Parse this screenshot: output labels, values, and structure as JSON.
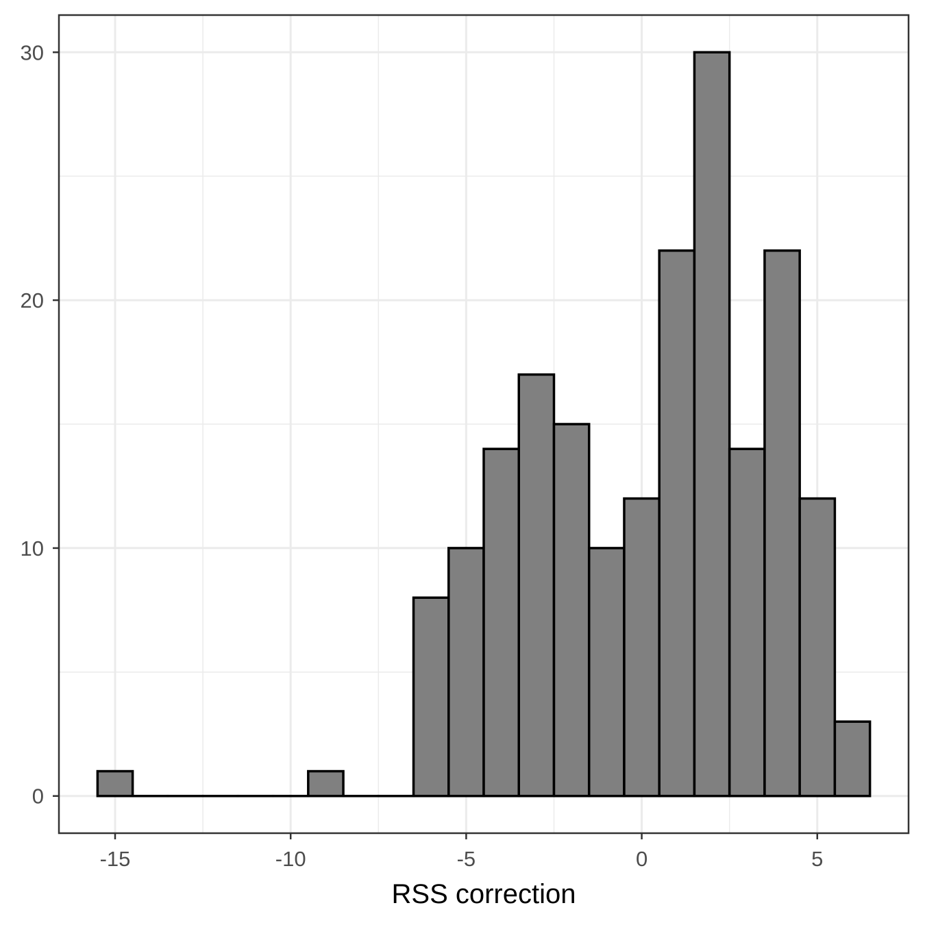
{
  "chart_data": {
    "type": "bar",
    "subtype": "histogram",
    "title": "",
    "xlabel": "RSS correction",
    "ylabel": "",
    "bin_width": 1,
    "bins": [
      {
        "x": -15,
        "count": 1
      },
      {
        "x": -14,
        "count": 0
      },
      {
        "x": -13,
        "count": 0
      },
      {
        "x": -12,
        "count": 0
      },
      {
        "x": -11,
        "count": 0
      },
      {
        "x": -10,
        "count": 0
      },
      {
        "x": -9,
        "count": 1
      },
      {
        "x": -8,
        "count": 0
      },
      {
        "x": -7,
        "count": 0
      },
      {
        "x": -6,
        "count": 8
      },
      {
        "x": -5,
        "count": 10
      },
      {
        "x": -4,
        "count": 14
      },
      {
        "x": -3,
        "count": 17
      },
      {
        "x": -2,
        "count": 15
      },
      {
        "x": -1,
        "count": 10
      },
      {
        "x": 0,
        "count": 12
      },
      {
        "x": 1,
        "count": 22
      },
      {
        "x": 2,
        "count": 30
      },
      {
        "x": 3,
        "count": 14
      },
      {
        "x": 4,
        "count": 22
      },
      {
        "x": 5,
        "count": 12
      },
      {
        "x": 6,
        "count": 3
      }
    ],
    "xlim": [
      -16.6,
      7.6
    ],
    "ylim": [
      -1.5,
      31.5
    ],
    "x_ticks": [
      -15,
      -10,
      -5,
      0,
      5
    ],
    "x_tick_labels": [
      "-15",
      "-10",
      "-5",
      "0",
      "5"
    ],
    "y_ticks": [
      0,
      10,
      20,
      30
    ],
    "y_tick_labels": [
      "0",
      "10",
      "20",
      "30"
    ],
    "grid": true,
    "colors": {
      "bar_fill": "#808080",
      "bar_outline": "#000000",
      "grid": "#ebebeb",
      "panel_border": "#333333",
      "tick_text": "#4d4d4d"
    }
  }
}
